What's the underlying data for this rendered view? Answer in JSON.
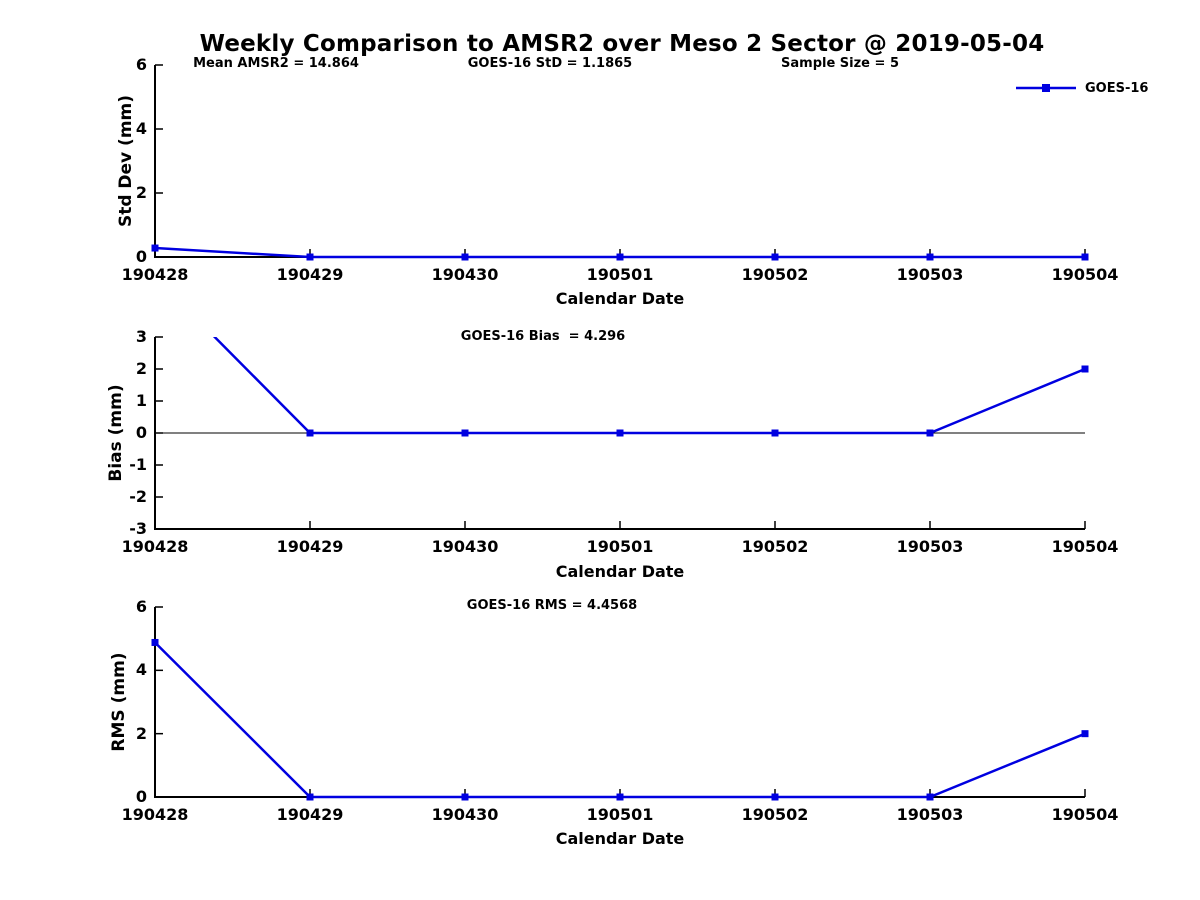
{
  "title": "Weekly Comparison to AMSR2 over Meso 2 Sector @ 2019-05-04",
  "legend": {
    "label": "GOES-16"
  },
  "colors": {
    "series": "#0000e0",
    "axis": "#000000",
    "text": "#000000",
    "background": "#ffffff"
  },
  "chart_data": [
    {
      "type": "line",
      "panel": "std-dev",
      "annotations": [
        {
          "text": "Mean AMSR2 = 14.864"
        },
        {
          "text": "GOES-16 StD = 1.1865"
        },
        {
          "text": "Sample Size = 5"
        }
      ],
      "categories": [
        "190428",
        "190429",
        "190430",
        "190501",
        "190502",
        "190503",
        "190504"
      ],
      "series": [
        {
          "name": "GOES-16",
          "values": [
            0.28,
            0,
            0,
            0,
            0,
            0,
            0
          ]
        }
      ],
      "xlabel": "Calendar Date",
      "ylabel": "Std Dev (mm)",
      "ylim": [
        0,
        6
      ],
      "yticks": [
        0,
        2,
        4,
        6
      ],
      "zero_line": false,
      "grid": false,
      "legend_position": "top-right-outside"
    },
    {
      "type": "line",
      "panel": "bias",
      "annotations": [
        {
          "text": "GOES-16 Bias  = 4.296"
        }
      ],
      "categories": [
        "190428",
        "190429",
        "190430",
        "190501",
        "190502",
        "190503",
        "190504"
      ],
      "series": [
        {
          "name": "GOES-16",
          "values": [
            4.88,
            0,
            0,
            0,
            0,
            0,
            2.0
          ]
        }
      ],
      "note": "first point exceeds y-limit; line clipped at top of axes",
      "xlabel": "Calendar Date",
      "ylabel": "Bias (mm)",
      "ylim": [
        -3,
        3
      ],
      "yticks": [
        3,
        2,
        1,
        0,
        -1,
        -2,
        -3
      ],
      "zero_line": true,
      "grid": false
    },
    {
      "type": "line",
      "panel": "rms",
      "annotations": [
        {
          "text": "GOES-16 RMS = 4.4568"
        }
      ],
      "categories": [
        "190428",
        "190429",
        "190430",
        "190501",
        "190502",
        "190503",
        "190504"
      ],
      "series": [
        {
          "name": "GOES-16",
          "values": [
            4.88,
            0,
            0,
            0,
            0,
            0,
            2.0
          ]
        }
      ],
      "xlabel": "Calendar Date",
      "ylabel": "RMS (mm)",
      "ylim": [
        0,
        6
      ],
      "yticks": [
        0,
        2,
        4,
        6
      ],
      "zero_line": false,
      "grid": false
    }
  ]
}
